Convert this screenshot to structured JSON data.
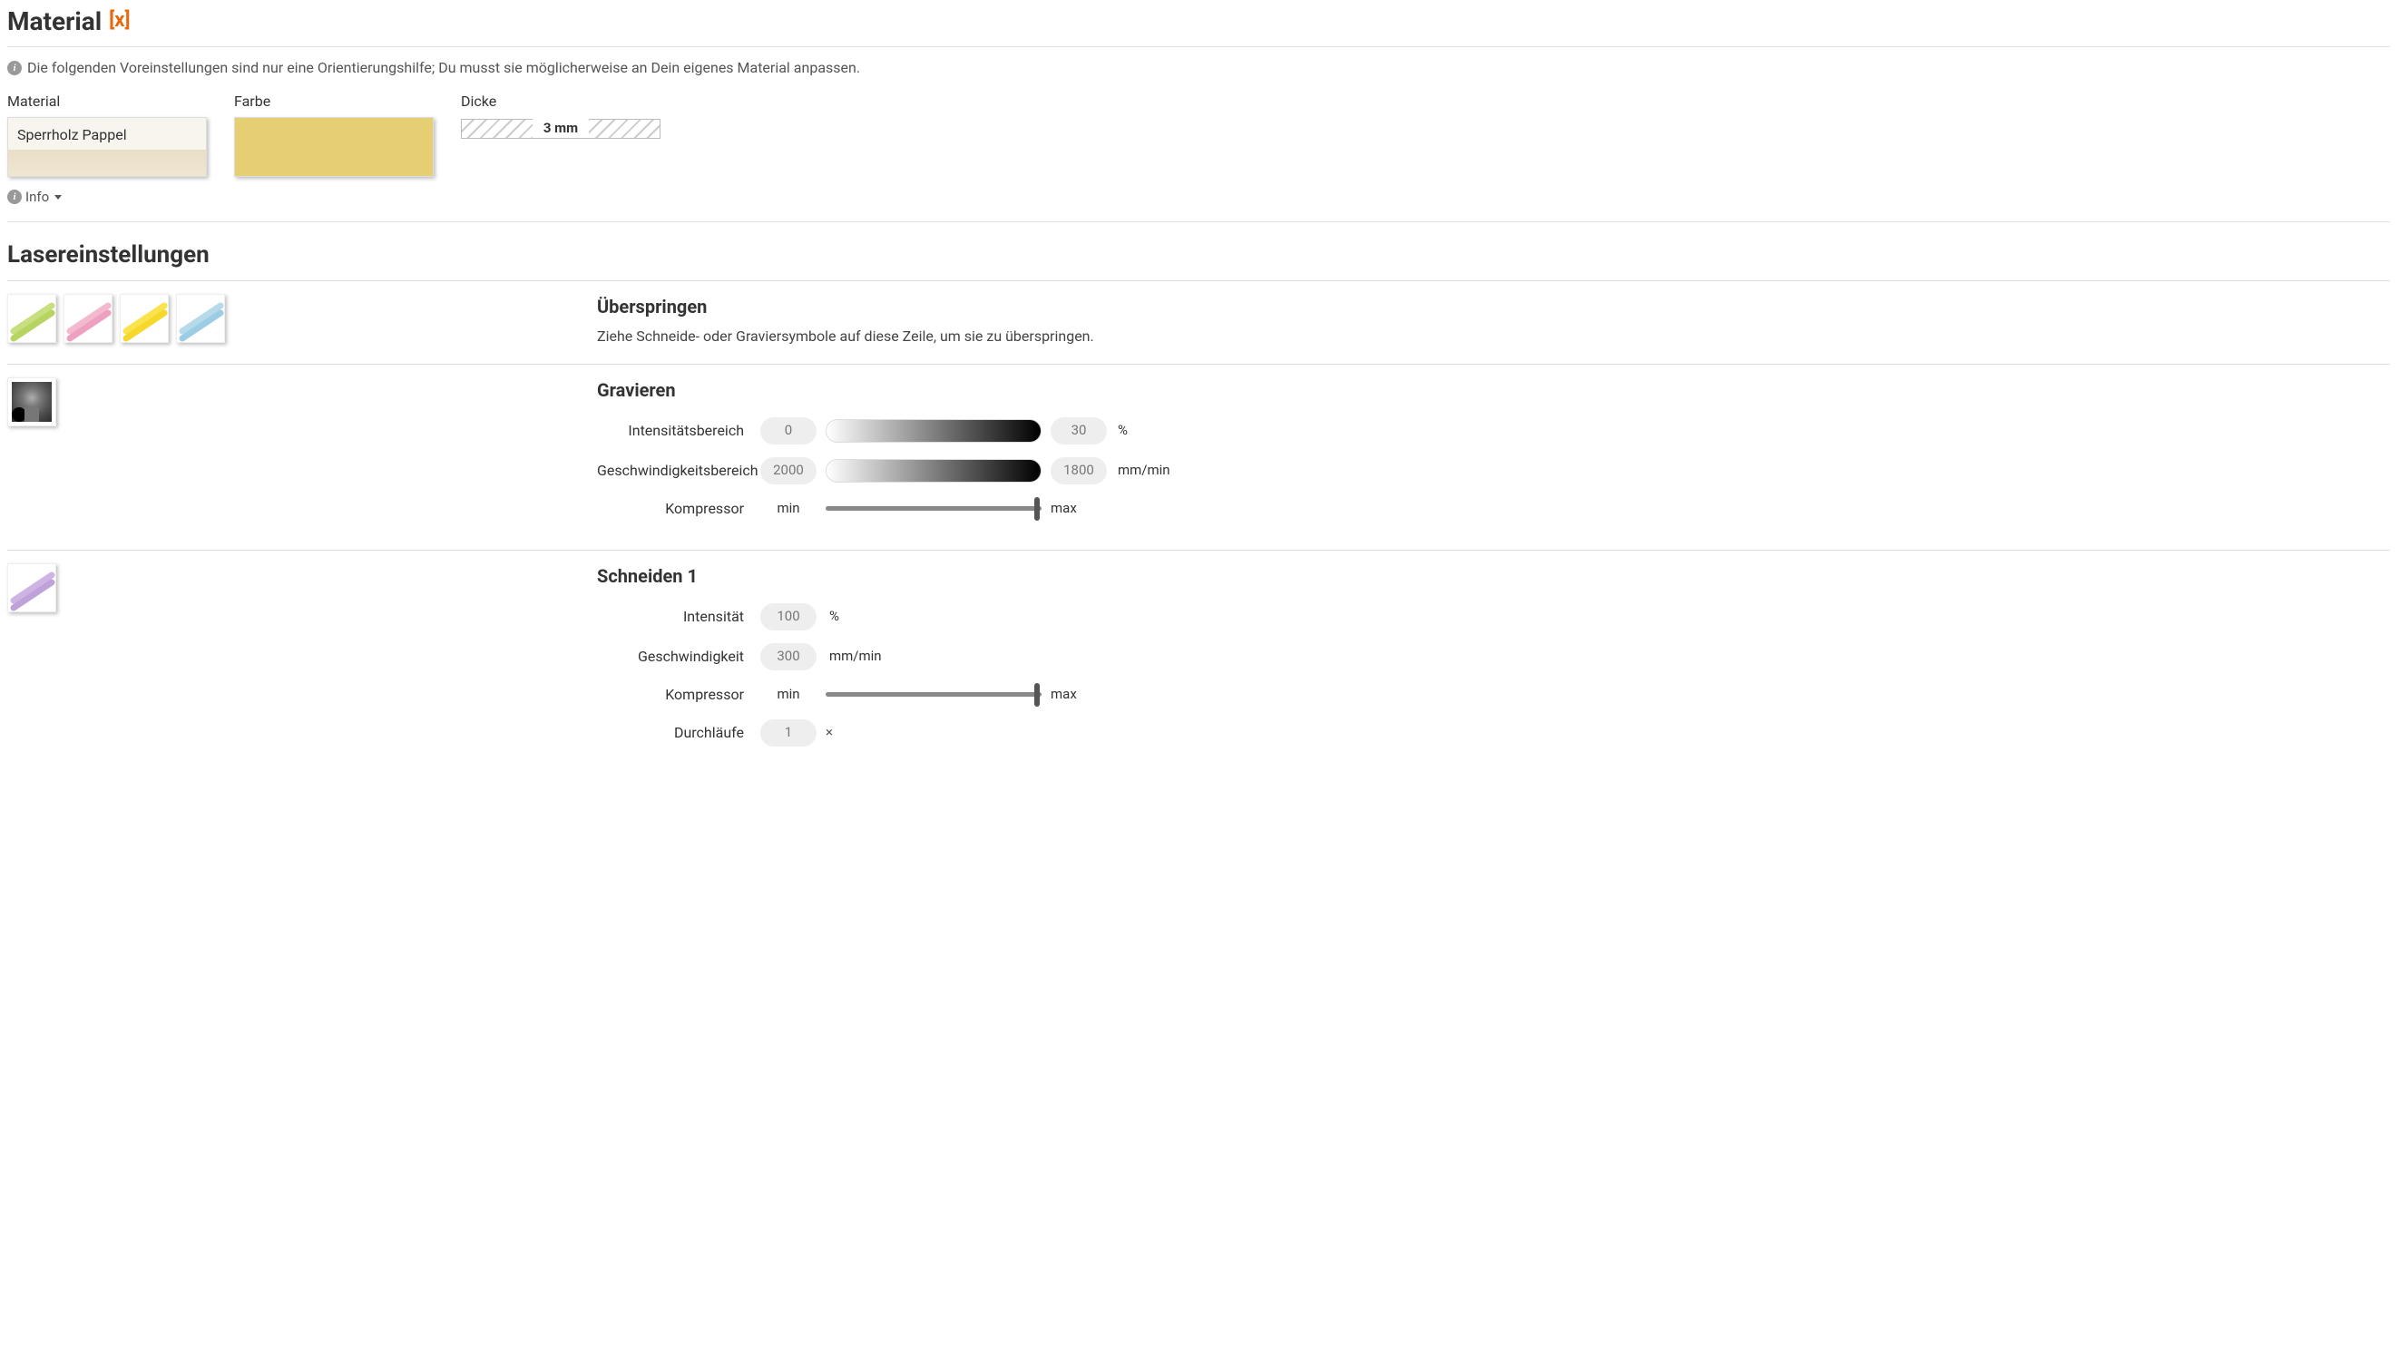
{
  "headings": {
    "material": "Material",
    "clear_symbol": "[x]",
    "laser": "Lasereinstellungen"
  },
  "hint": "Die folgenden Voreinstellungen sind nur eine Orientierungshilfe; Du musst sie möglicherweise an Dein eigenes Material anpassen.",
  "material": {
    "material_label": "Material",
    "material_value": "Sperrholz Pappel",
    "color_label": "Farbe",
    "color_hex": "#e5cf72",
    "thickness_label": "Dicke",
    "thickness_value": "3 mm",
    "info_label": "Info"
  },
  "skip": {
    "title": "Überspringen",
    "desc": "Ziehe Schneide- oder Graviersymbole auf diese Zeile, um sie zu überspringen.",
    "tiles": [
      {
        "name": "skip-tile-green",
        "c1": "#c7df7f",
        "c2": "#b7d460"
      },
      {
        "name": "skip-tile-pink",
        "c1": "#f3b9cf",
        "c2": "#eea0c0"
      },
      {
        "name": "skip-tile-yellow",
        "c1": "#fbe34d",
        "c2": "#f6d82a"
      },
      {
        "name": "skip-tile-blue",
        "c1": "#b7daea",
        "c2": "#9dcde4"
      }
    ]
  },
  "engrave": {
    "title": "Gravieren",
    "intensity_label": "Intensitätsbereich",
    "speed_label": "Geschwindigkeitsbereich",
    "compressor_label": "Kompressor",
    "intensity_min": "0",
    "intensity_max": "30",
    "intensity_unit": "%",
    "speed_min": "2000",
    "speed_max": "1800",
    "speed_unit": "mm/min",
    "min_label": "min",
    "max_label": "max",
    "compressor_pos_pct": 98
  },
  "cut1": {
    "title": "Schneiden 1",
    "tile": {
      "name": "cut1-tile-lilac",
      "c1": "#cdb4e2",
      "c2": "#bfa2da"
    },
    "intensity_label": "Intensität",
    "intensity_value": "100",
    "intensity_unit": "%",
    "speed_label": "Geschwindigkeit",
    "speed_value": "300",
    "speed_unit": "mm/min",
    "compressor_label": "Kompressor",
    "min_label": "min",
    "max_label": "max",
    "compressor_pos_pct": 98,
    "passes_label": "Durchläufe",
    "passes_value": "1",
    "passes_symbol": "×"
  },
  "styling": {
    "accent_orange": "#e8690b",
    "pill_bg": "#eeeeee",
    "pill_text": "#777777",
    "divider": "#e0e0e0",
    "slider_track": "#888888",
    "slider_thumb": "#555555"
  }
}
